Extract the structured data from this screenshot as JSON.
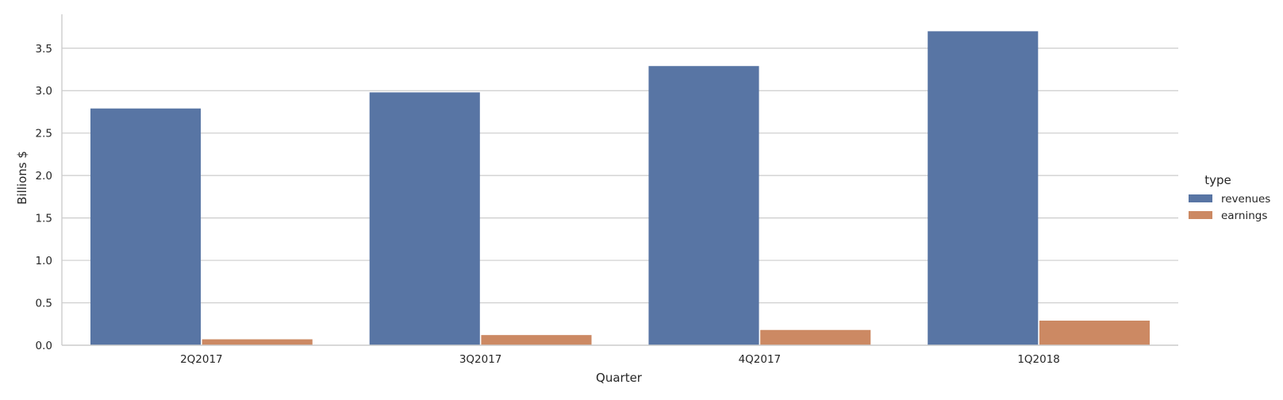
{
  "chart_data": {
    "type": "bar",
    "title": "",
    "xlabel": "Quarter",
    "ylabel": "Billions $",
    "categories": [
      "2Q2017",
      "3Q2017",
      "4Q2017",
      "1Q2018"
    ],
    "series": [
      {
        "name": "revenues",
        "values": [
          2.79,
          2.98,
          3.29,
          3.7
        ],
        "color": "#5875a4"
      },
      {
        "name": "earnings",
        "values": [
          0.07,
          0.12,
          0.18,
          0.29
        ],
        "color": "#cc8963"
      }
    ],
    "ylim": [
      0,
      3.9
    ],
    "yticks": [
      "0.0",
      "0.5",
      "1.0",
      "1.5",
      "2.0",
      "2.5",
      "3.0",
      "3.5"
    ],
    "grid": "horizontal",
    "legend": {
      "title": "type",
      "position": "right"
    }
  }
}
